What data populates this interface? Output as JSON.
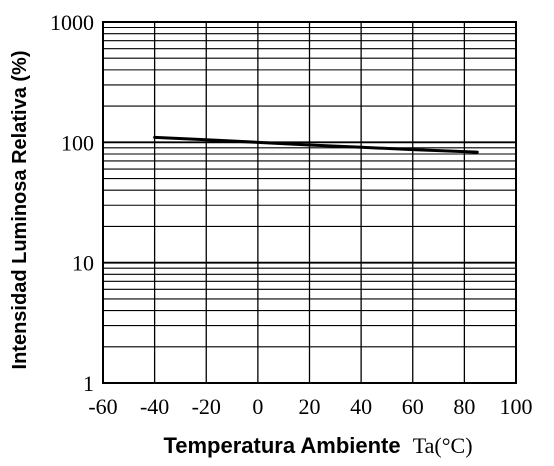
{
  "chart_data": {
    "type": "line",
    "title": "",
    "xlabel": "Temperatura Ambiente",
    "xlabel_symbol": "Ta(°C)",
    "ylabel": "Intensidad Luminosa Relativa (%)",
    "x_ticks": [
      "-60",
      "-40",
      "-20",
      "0",
      "20",
      "40",
      "60",
      "80",
      "100"
    ],
    "y_ticks": [
      "1",
      "10",
      "100",
      "1000"
    ],
    "xlim": [
      -60,
      100
    ],
    "ylim": [
      1,
      1000
    ],
    "yscale": "log",
    "grid": true,
    "series": [
      {
        "x": [
          -40,
          -20,
          0,
          20,
          40,
          60,
          85
        ],
        "y": [
          110,
          105,
          100,
          95,
          91,
          87,
          83
        ]
      }
    ]
  }
}
